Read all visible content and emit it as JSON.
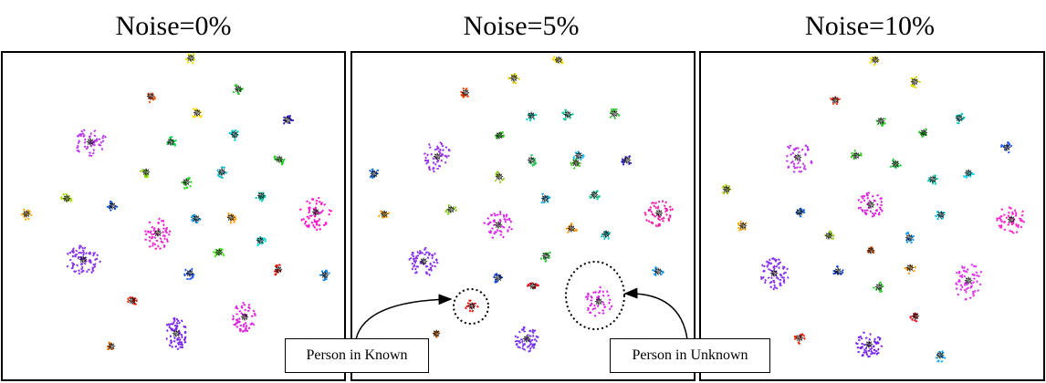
{
  "panels": [
    {
      "title": "Noise=0%",
      "clusters": [
        {
          "c": "#e6e600",
          "n": 12
        },
        {
          "c": "#ff4d00",
          "n": 12
        },
        {
          "c": "#33cc33",
          "n": 14
        },
        {
          "c": "#ffdd00",
          "n": 12
        },
        {
          "c": "#3322cc",
          "n": 12
        },
        {
          "c": "#bb33ee",
          "n": 55
        },
        {
          "c": "#00cc44",
          "n": 14
        },
        {
          "c": "#00cccc",
          "n": 14
        },
        {
          "c": "#88dd00",
          "n": 14
        },
        {
          "c": "#22bbcc",
          "n": 14
        },
        {
          "c": "#33dd33",
          "n": 16
        },
        {
          "c": "#22cc22",
          "n": 14
        },
        {
          "c": "#ffaa00",
          "n": 12
        },
        {
          "c": "#aadd00",
          "n": 14
        },
        {
          "c": "#1155dd",
          "n": 12
        },
        {
          "c": "#00ccaa",
          "n": 14
        },
        {
          "c": "#ee22cc",
          "n": 55
        },
        {
          "c": "#ff11cc",
          "n": 60
        },
        {
          "c": "#ff9900",
          "n": 14
        },
        {
          "c": "#1199dd",
          "n": 14
        },
        {
          "c": "#00dddd",
          "n": 14
        },
        {
          "c": "#44ee11",
          "n": 16
        },
        {
          "c": "#8833ee",
          "n": 80
        },
        {
          "c": "#2255ff",
          "n": 14
        },
        {
          "c": "#ee0000",
          "n": 12
        },
        {
          "c": "#1188ee",
          "n": 14
        },
        {
          "c": "#ee2200",
          "n": 14
        },
        {
          "c": "#dd22dd",
          "n": 55
        },
        {
          "c": "#7722ee",
          "n": 65
        },
        {
          "c": "#ff7700",
          "n": 10
        }
      ]
    },
    {
      "title": "Noise=5%",
      "clusters": [
        {
          "c": "#eedd00",
          "n": 12
        },
        {
          "c": "#ddcc00",
          "n": 12
        },
        {
          "c": "#ff4400",
          "n": 12
        },
        {
          "c": "#00ccbb",
          "n": 12
        },
        {
          "c": "#00cc99",
          "n": 12
        },
        {
          "c": "#33cc22",
          "n": 12
        },
        {
          "c": "#33cc33",
          "n": 12
        },
        {
          "c": "#9933ee",
          "n": 50
        },
        {
          "c": "#55cc33",
          "n": 12
        },
        {
          "c": "#22cc55",
          "n": 12
        },
        {
          "c": "#22bbee",
          "n": 12
        },
        {
          "c": "#3322bb",
          "n": 12
        },
        {
          "c": "#1166dd",
          "n": 12
        },
        {
          "c": "#99cc22",
          "n": 12
        },
        {
          "c": "#11aadd",
          "n": 12
        },
        {
          "c": "#00cc88",
          "n": 12
        },
        {
          "c": "#ffaa00",
          "n": 12
        },
        {
          "c": "#88cc22",
          "n": 12
        },
        {
          "c": "#dd22ee",
          "n": 50
        },
        {
          "c": "#ee22aa",
          "n": 55
        },
        {
          "c": "#ff9900",
          "n": 12
        },
        {
          "c": "#00cccc",
          "n": 12
        },
        {
          "c": "#8833ee",
          "n": 65
        },
        {
          "c": "#33cc44",
          "n": 12
        },
        {
          "c": "#1144dd",
          "n": 12
        },
        {
          "c": "#ee0011",
          "n": 12
        },
        {
          "c": "#1199ee",
          "n": 12
        },
        {
          "c": "#ee1111",
          "n": 14
        },
        {
          "c": "#dd22ee",
          "n": 45
        },
        {
          "c": "#7733ee",
          "n": 55
        },
        {
          "c": "#ff7700",
          "n": 10
        }
      ]
    },
    {
      "title": "Noise=10%",
      "clusters": [
        {
          "c": "#eedd00",
          "n": 12
        },
        {
          "c": "#dddd00",
          "n": 12
        },
        {
          "c": "#ff4422",
          "n": 12
        },
        {
          "c": "#33cc33",
          "n": 12
        },
        {
          "c": "#00ccbb",
          "n": 12
        },
        {
          "c": "#22cc22",
          "n": 12
        },
        {
          "c": "#bb33ee",
          "n": 45
        },
        {
          "c": "#2255ff",
          "n": 12
        },
        {
          "c": "#44cc33",
          "n": 12
        },
        {
          "c": "#22cc44",
          "n": 12
        },
        {
          "c": "#00ccaa",
          "n": 12
        },
        {
          "c": "#aacc00",
          "n": 12
        },
        {
          "c": "#11ddee",
          "n": 12
        },
        {
          "c": "#dd22dd",
          "n": 45
        },
        {
          "c": "#1166dd",
          "n": 12
        },
        {
          "c": "#ffaa00",
          "n": 12
        },
        {
          "c": "#99cc22",
          "n": 12
        },
        {
          "c": "#00bbdd",
          "n": 12
        },
        {
          "c": "#ff22cc",
          "n": 55
        },
        {
          "c": "#ff6600",
          "n": 10
        },
        {
          "c": "#1199ee",
          "n": 12
        },
        {
          "c": "#8833ee",
          "n": 70
        },
        {
          "c": "#1144dd",
          "n": 12
        },
        {
          "c": "#33cc33",
          "n": 12
        },
        {
          "c": "#ff9900",
          "n": 12
        },
        {
          "c": "#dd33ee",
          "n": 60
        },
        {
          "c": "#ee1122",
          "n": 12
        },
        {
          "c": "#ee2200",
          "n": 12
        },
        {
          "c": "#7722ee",
          "n": 60
        },
        {
          "c": "#11aaee",
          "n": 12
        }
      ]
    }
  ],
  "annotations": {
    "known_label": "Person in Known",
    "unknown_label": "Person in Unknown"
  },
  "colors": {
    "centroid": "#000000",
    "border": "#000000"
  }
}
